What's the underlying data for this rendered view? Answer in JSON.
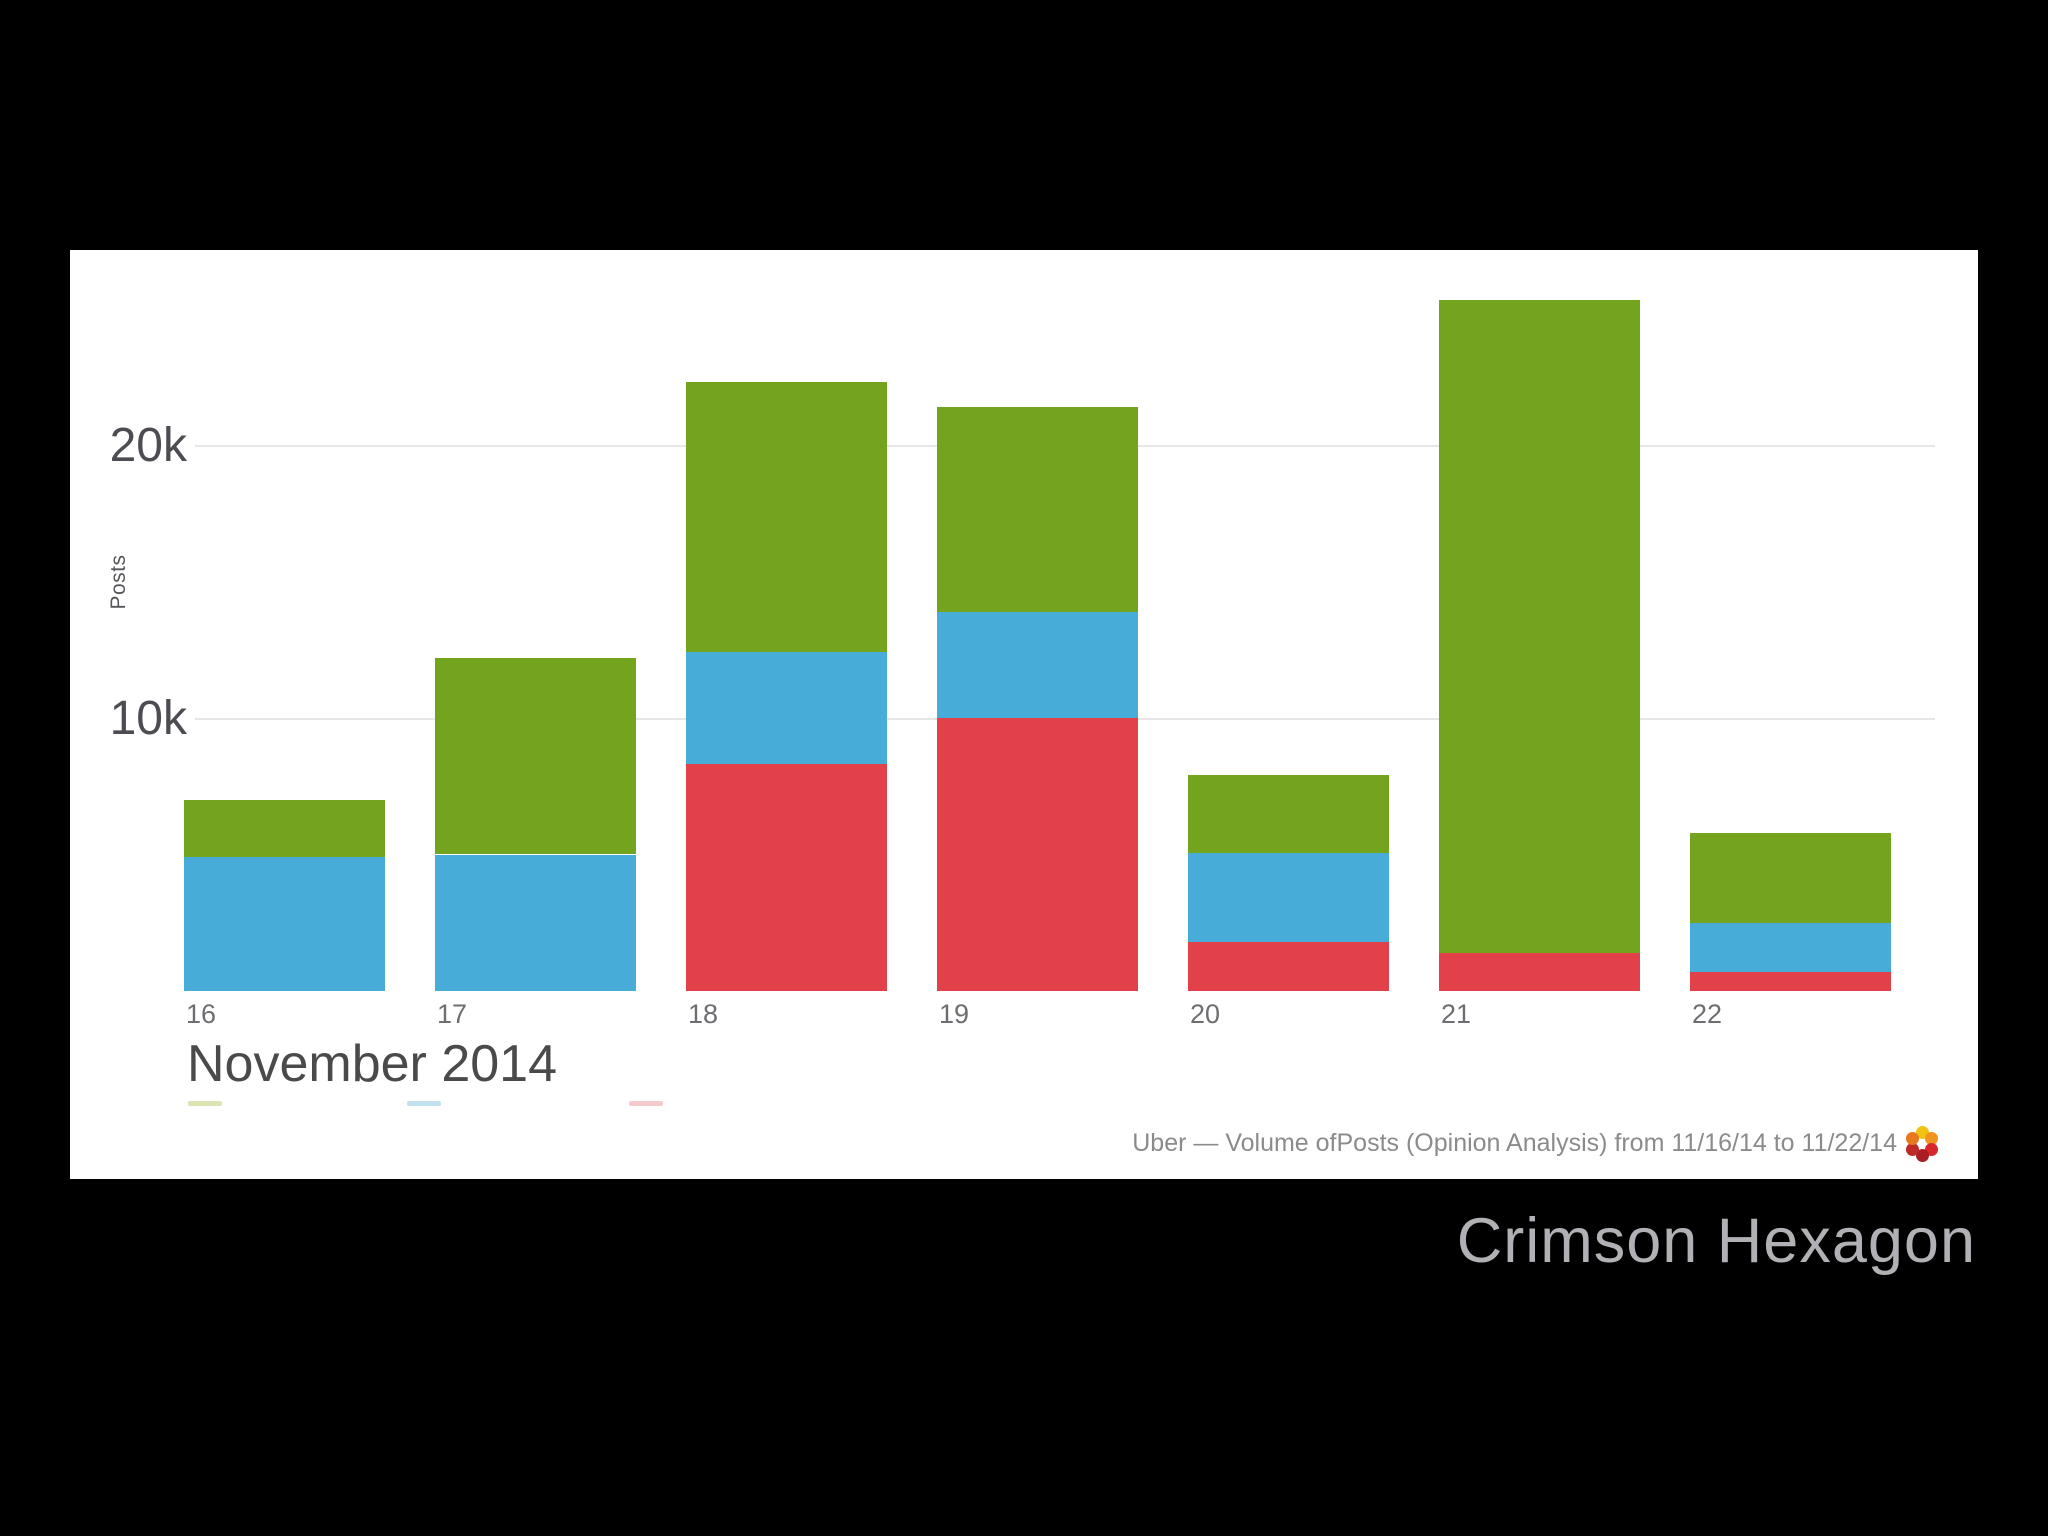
{
  "canvas": {
    "background": "#000000"
  },
  "panel": {
    "background": "#ffffff"
  },
  "watermark": "Crimson Hexagon",
  "chart_data": {
    "type": "bar",
    "stacked": true,
    "title": "November 2014",
    "ylabel": "Posts",
    "caption": "Uber — Volume ofPosts (Opinion Analysis) from 11/16/14 to 11/22/14",
    "categories": [
      "16",
      "17",
      "18",
      "19",
      "20",
      "21",
      "22"
    ],
    "series": [
      {
        "name": "red-segment",
        "color": "#e2414a",
        "values": [
          0,
          0,
          8300,
          10000,
          1800,
          1400,
          700
        ]
      },
      {
        "name": "blue-segment",
        "color": "#48acd8",
        "values": [
          4900,
          5000,
          4100,
          3900,
          3250,
          0,
          1800
        ]
      },
      {
        "name": "green-segment",
        "color": "#74a41d",
        "values": [
          2100,
          7200,
          9900,
          7500,
          2850,
          23900,
          3300
        ]
      }
    ],
    "totals": [
      7000,
      12200,
      22300,
      21400,
      7900,
      25300,
      5800
    ],
    "yticks": [
      {
        "label": "20k",
        "value": 20000
      },
      {
        "label": "10k",
        "value": 10000
      }
    ],
    "ylim": [
      0,
      27500
    ],
    "grid": true,
    "xlabel": "",
    "legend_position": "bottom-left",
    "legend_swatches": [
      {
        "color": "#dce4b4"
      },
      {
        "color": "#c3e2f0"
      },
      {
        "color": "#f6c9cd"
      }
    ],
    "logo_dots": [
      "#f2c313",
      "#f0941f",
      "#d7262c",
      "#a81e23",
      "#bf2a27",
      "#e8771d"
    ]
  }
}
